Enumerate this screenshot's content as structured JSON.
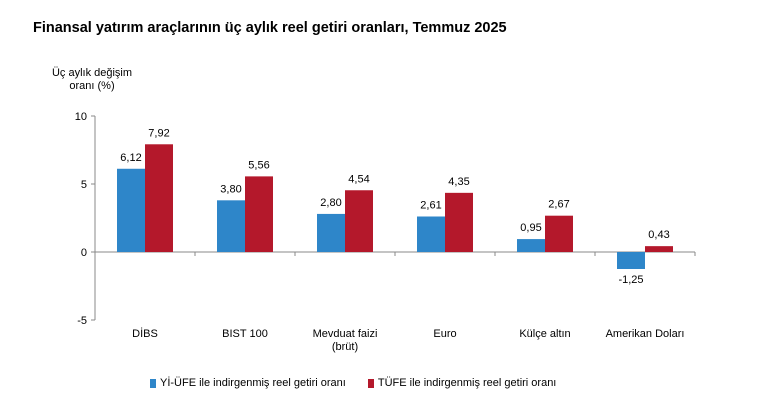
{
  "chart_data": {
    "type": "bar",
    "title": "Finansal yatırım araçlarının üç aylık reel getiri oranları, Temmuz 2025",
    "ylabel": [
      "Üç aylık değişim",
      "oranı (%)"
    ],
    "ylim": [
      -5,
      10
    ],
    "yticks": [
      10,
      5,
      0,
      -5
    ],
    "categories": [
      [
        "DİBS"
      ],
      [
        "BIST 100"
      ],
      [
        "Mevduat faizi",
        "(brüt)"
      ],
      [
        "Euro"
      ],
      [
        "Külçe altın"
      ],
      [
        "Amerikan Doları"
      ]
    ],
    "series": [
      {
        "name": "Yİ-ÜFE ile indirgenmiş reel getiri oranı",
        "color": "#2E86C9",
        "values": [
          6.12,
          3.8,
          2.8,
          2.61,
          0.95,
          -1.25
        ],
        "labels": [
          "6,12",
          "3,80",
          "2,80",
          "2,61",
          "0,95",
          "-1,25"
        ]
      },
      {
        "name": "TÜFE ile indirgenmiş reel getiri oranı",
        "color": "#B4182B",
        "values": [
          7.92,
          5.56,
          4.54,
          4.35,
          2.67,
          0.43
        ],
        "labels": [
          "7,92",
          "5,56",
          "4,54",
          "4,35",
          "2,67",
          "0,43"
        ]
      }
    ],
    "grid": false,
    "legend_position": "bottom"
  }
}
